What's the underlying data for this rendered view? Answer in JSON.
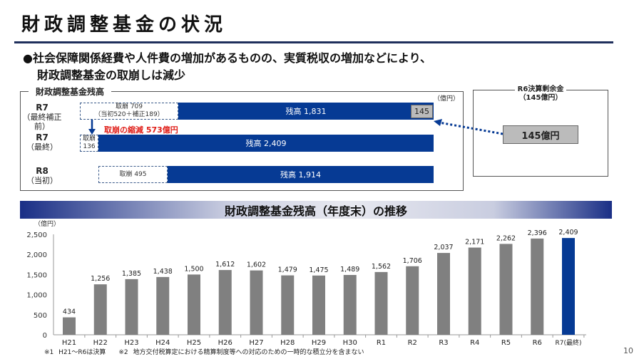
{
  "title": "財政調整基金の状況",
  "bullet": {
    "line1": "●社会保障関係経費や人件費の増加があるものの、実質税収の増加などにより、",
    "line2": "財政調整基金の取崩しは減少"
  },
  "panel": {
    "title": "財政調整基金残高",
    "unit": "（億円）",
    "rows": [
      {
        "label1": "R7",
        "label2": "（最終補正前）",
        "draw": "取崩 709",
        "draw_sub": "（当初520＋補正189）",
        "balance": "残高 1,831",
        "extra": "145"
      },
      {
        "label1": "R7",
        "label2": "（最終）",
        "draw": "取崩",
        "draw_sub": "136",
        "balance": "残高 2,409"
      },
      {
        "label1": "R8",
        "label2": "（当初）",
        "draw": "取崩 495",
        "balance": "残高 1,914"
      }
    ],
    "reduction": "取崩の縮減 573億円"
  },
  "surplus": {
    "title1": "R6決算剰余金",
    "title2": "（145億円）",
    "value": "145億円"
  },
  "banner": "財政調整基金残高（年度末）の推移",
  "colors": {
    "navy": "#063a94",
    "bar": "#808080"
  },
  "chart_data": {
    "type": "bar",
    "ylabel": "（億円）",
    "ylim": [
      0,
      2500
    ],
    "yticks": [
      "0",
      "500",
      "1,000",
      "1,500",
      "2,000",
      "2,500"
    ],
    "categories": [
      "H21",
      "H22",
      "H23",
      "H24",
      "H25",
      "H26",
      "H27",
      "H28",
      "H29",
      "H30",
      "R1",
      "R2",
      "R3",
      "R4",
      "R5",
      "R6",
      "R7(最終)"
    ],
    "values": [
      434,
      1256,
      1385,
      1438,
      1500,
      1612,
      1602,
      1479,
      1475,
      1489,
      1562,
      1706,
      2037,
      2171,
      2262,
      2396,
      2409
    ],
    "labels": [
      "434",
      "1,256",
      "1,385",
      "1,438",
      "1,500",
      "1,612",
      "1,602",
      "1,479",
      "1,475",
      "1,489",
      "1,562",
      "1,706",
      "2,037",
      "2,171",
      "2,262",
      "2,396",
      "2,409"
    ],
    "highlight_last": true
  },
  "footnote": "※1 H21～R6は決算　　※2 地方交付税算定における精算制度等への対応のための一時的な積立分を含まない",
  "page": "10"
}
